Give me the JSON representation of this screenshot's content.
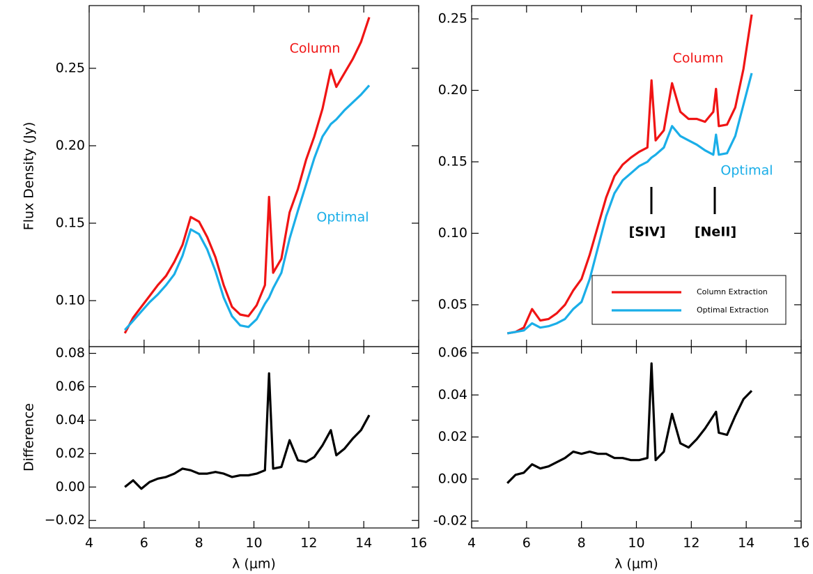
{
  "chart_data": [
    {
      "type": "line",
      "ylabel": "Flux Density (Jy)",
      "xlim": [
        4,
        16
      ],
      "xticks": [
        4,
        6,
        8,
        10,
        12,
        14,
        16
      ],
      "show_xtick_labels": false,
      "ylim": [
        0.0703,
        0.2905
      ],
      "yticks": [
        {
          "value": 0.1,
          "label": "0.10"
        },
        0.15,
        {
          "value": 0.2,
          "label": "0.20"
        },
        0.25
      ],
      "x": [
        5.3,
        5.6,
        5.9,
        6.2,
        6.5,
        6.8,
        7.1,
        7.4,
        7.7,
        8.0,
        8.3,
        8.6,
        8.9,
        9.2,
        9.5,
        9.8,
        10.1,
        10.4,
        10.55,
        10.7,
        11.0,
        11.3,
        11.6,
        11.9,
        12.2,
        12.5,
        12.8,
        13.0,
        13.3,
        13.6,
        13.9,
        14.2
      ],
      "series": [
        {
          "name": "Column",
          "color": "#f01414",
          "values": [
            0.079,
            0.089,
            0.096,
            0.103,
            0.11,
            0.116,
            0.125,
            0.136,
            0.154,
            0.151,
            0.141,
            0.128,
            0.11,
            0.096,
            0.091,
            0.09,
            0.097,
            0.11,
            0.167,
            0.118,
            0.127,
            0.157,
            0.172,
            0.191,
            0.206,
            0.224,
            0.249,
            0.238,
            0.247,
            0.256,
            0.267,
            0.283
          ]
        },
        {
          "name": "Optimal",
          "color": "#1aaee8",
          "values": [
            0.081,
            0.087,
            0.093,
            0.099,
            0.104,
            0.11,
            0.117,
            0.129,
            0.146,
            0.143,
            0.133,
            0.119,
            0.102,
            0.09,
            0.084,
            0.083,
            0.088,
            0.098,
            0.102,
            0.108,
            0.118,
            0.14,
            0.158,
            0.175,
            0.192,
            0.206,
            0.214,
            0.217,
            0.223,
            0.228,
            0.233,
            0.239
          ]
        }
      ]
    },
    {
      "type": "line",
      "ylabel": "Difference",
      "xlabel": "λ (μm)",
      "xlim": [
        4,
        16
      ],
      "xticks": [
        4,
        6,
        8,
        10,
        12,
        14,
        16
      ],
      "ylim": [
        -0.0245,
        0.084
      ],
      "yticks": [
        {
          "value": -0.02,
          "label": "−0.02"
        },
        {
          "value": 0,
          "label": "0.00"
        },
        0.02,
        0.04,
        0.06,
        0.08
      ],
      "x": [
        5.3,
        5.6,
        5.9,
        6.2,
        6.5,
        6.8,
        7.1,
        7.4,
        7.7,
        8.0,
        8.3,
        8.6,
        8.9,
        9.2,
        9.5,
        9.8,
        10.1,
        10.4,
        10.55,
        10.7,
        11.0,
        11.3,
        11.6,
        11.9,
        12.2,
        12.5,
        12.8,
        13.0,
        13.3,
        13.6,
        13.9,
        14.2
      ],
      "color": "#000000",
      "values": [
        0.0,
        0.004,
        -0.001,
        0.003,
        0.005,
        0.006,
        0.008,
        0.011,
        0.01,
        0.008,
        0.008,
        0.009,
        0.008,
        0.006,
        0.007,
        0.007,
        0.008,
        0.01,
        0.068,
        0.011,
        0.012,
        0.028,
        0.016,
        0.015,
        0.018,
        0.025,
        0.034,
        0.019,
        0.023,
        0.029,
        0.034,
        0.043
      ]
    },
    {
      "type": "line",
      "xlim": [
        4,
        16
      ],
      "xticks": [
        4,
        6,
        8,
        10,
        12,
        14,
        16
      ],
      "show_xtick_labels": false,
      "ylim": [
        0.0207,
        0.2593
      ],
      "yticks": [
        0.05,
        {
          "value": 0.1,
          "label": "0.10"
        },
        0.15,
        {
          "value": 0.2,
          "label": "0.20"
        },
        0.25
      ],
      "legend": "lower right",
      "x": [
        5.3,
        5.6,
        5.9,
        6.2,
        6.5,
        6.8,
        7.1,
        7.4,
        7.7,
        8.0,
        8.3,
        8.6,
        8.9,
        9.2,
        9.5,
        9.8,
        10.1,
        10.4,
        10.55,
        10.7,
        11.0,
        11.3,
        11.6,
        11.9,
        12.2,
        12.5,
        12.8,
        12.9,
        13.0,
        13.3,
        13.6,
        13.9,
        14.2
      ],
      "series": [
        {
          "name": "Column Extraction",
          "color": "#f01414",
          "values": [
            0.03,
            0.031,
            0.034,
            0.047,
            0.039,
            0.04,
            0.044,
            0.05,
            0.06,
            0.068,
            0.085,
            0.105,
            0.125,
            0.14,
            0.148,
            0.153,
            0.157,
            0.16,
            0.207,
            0.165,
            0.172,
            0.205,
            0.185,
            0.18,
            0.18,
            0.178,
            0.185,
            0.201,
            0.175,
            0.176,
            0.188,
            0.215,
            0.253
          ]
        },
        {
          "name": "Optimal Extraction",
          "color": "#1aaee8",
          "values": [
            0.03,
            0.031,
            0.032,
            0.037,
            0.034,
            0.035,
            0.037,
            0.04,
            0.047,
            0.052,
            0.068,
            0.09,
            0.112,
            0.128,
            0.137,
            0.142,
            0.147,
            0.15,
            0.153,
            0.155,
            0.16,
            0.175,
            0.168,
            0.165,
            0.162,
            0.158,
            0.155,
            0.169,
            0.155,
            0.156,
            0.168,
            0.19,
            0.212
          ]
        }
      ],
      "annotations": [
        {
          "text": "Column",
          "color": "#f01414"
        },
        {
          "text": "Optimal",
          "color": "#1aaee8"
        },
        {
          "text": "[SIV]",
          "color": "#000000"
        },
        {
          "text": "[NeII]",
          "color": "#000000"
        }
      ]
    },
    {
      "type": "line",
      "xlabel": "λ (μm)",
      "xlim": [
        4,
        16
      ],
      "xticks": [
        4,
        6,
        8,
        10,
        12,
        14,
        16
      ],
      "ylim": [
        -0.0233,
        0.063
      ],
      "yticks": [
        {
          "value": -0.02,
          "label": "-0.02"
        },
        {
          "value": 0,
          "label": "0.00"
        },
        0.02,
        0.04,
        0.06
      ],
      "x": [
        5.3,
        5.6,
        5.9,
        6.2,
        6.5,
        6.8,
        7.1,
        7.4,
        7.7,
        8.0,
        8.3,
        8.6,
        8.9,
        9.2,
        9.5,
        9.8,
        10.1,
        10.4,
        10.55,
        10.7,
        11.0,
        11.3,
        11.6,
        11.9,
        12.2,
        12.5,
        12.8,
        12.9,
        13.0,
        13.3,
        13.6,
        13.9,
        14.2
      ],
      "color": "#000000",
      "values": [
        -0.002,
        0.002,
        0.003,
        0.007,
        0.005,
        0.006,
        0.008,
        0.01,
        0.013,
        0.012,
        0.013,
        0.012,
        0.012,
        0.01,
        0.01,
        0.009,
        0.009,
        0.01,
        0.055,
        0.009,
        0.013,
        0.031,
        0.017,
        0.015,
        0.019,
        0.024,
        0.03,
        0.032,
        0.022,
        0.021,
        0.03,
        0.038,
        0.042
      ]
    }
  ]
}
